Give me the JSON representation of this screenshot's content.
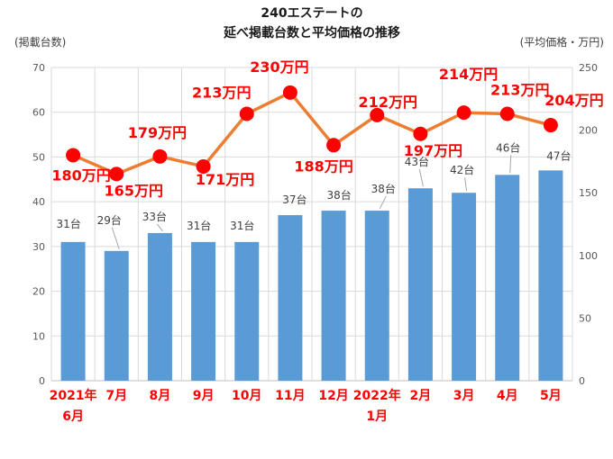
{
  "chart_data": {
    "type": "combo_bar_line",
    "title_line1": "240エステートの",
    "title_line2": "延べ掲載台数と平均価格の推移",
    "left_axis": {
      "unit_label": "(掲載台数)",
      "min": 0,
      "max": 70,
      "ticks": [
        0,
        10,
        20,
        30,
        40,
        50,
        60,
        70
      ]
    },
    "right_axis": {
      "unit_label": "(平均価格・万円)",
      "min": 0,
      "max": 250,
      "ticks": [
        0,
        50,
        100,
        150,
        200,
        250
      ]
    },
    "grid": true,
    "legend": "none",
    "categories": [
      {
        "lines": [
          "2021年",
          "6月"
        ]
      },
      {
        "lines": [
          "7月"
        ]
      },
      {
        "lines": [
          "8月"
        ]
      },
      {
        "lines": [
          "9月"
        ]
      },
      {
        "lines": [
          "10月"
        ]
      },
      {
        "lines": [
          "11月"
        ]
      },
      {
        "lines": [
          "12月"
        ]
      },
      {
        "lines": [
          "2022年",
          "1月"
        ]
      },
      {
        "lines": [
          "2月"
        ]
      },
      {
        "lines": [
          "3月"
        ]
      },
      {
        "lines": [
          "4月"
        ]
      },
      {
        "lines": [
          "5月"
        ]
      }
    ],
    "series": [
      {
        "name": "延べ掲載台数",
        "type": "bar",
        "axis": "left",
        "values": [
          31,
          29,
          33,
          31,
          31,
          37,
          38,
          38,
          43,
          42,
          46,
          47
        ],
        "labels": [
          {
            "text": "31台",
            "dx": -5,
            "dy": -20,
            "leader": false
          },
          {
            "text": "29台",
            "dx": -8,
            "dy": -34,
            "leader": true
          },
          {
            "text": "33台",
            "dx": -6,
            "dy": -18,
            "leader": true
          },
          {
            "text": "31台",
            "dx": -5,
            "dy": -18,
            "leader": false
          },
          {
            "text": "31台",
            "dx": -5,
            "dy": -18,
            "leader": false
          },
          {
            "text": "37台",
            "dx": 5,
            "dy": -17,
            "leader": false
          },
          {
            "text": "38台",
            "dx": 6,
            "dy": -17,
            "leader": false
          },
          {
            "text": "38台",
            "dx": 7,
            "dy": -24,
            "leader": true
          },
          {
            "text": "43台",
            "dx": -4,
            "dy": -29,
            "leader": true
          },
          {
            "text": "42台",
            "dx": -2,
            "dy": -25,
            "leader": true
          },
          {
            "text": "46台",
            "dx": 1,
            "dy": -30,
            "leader": true
          },
          {
            "text": "47台",
            "dx": 9,
            "dy": -16,
            "leader": false
          }
        ]
      },
      {
        "name": "平均価格",
        "type": "line",
        "axis": "right",
        "values": [
          180,
          165,
          179,
          171,
          213,
          230,
          188,
          212,
          197,
          214,
          213,
          204
        ],
        "labels": [
          {
            "text": "180万円",
            "dx": 9,
            "dy": 23
          },
          {
            "text": "165万円",
            "dx": 19,
            "dy": 19
          },
          {
            "text": "179万円",
            "dx": -3,
            "dy": -26
          },
          {
            "text": "171万円",
            "dx": 24,
            "dy": 15
          },
          {
            "text": "213万円",
            "dx": -28,
            "dy": -23
          },
          {
            "text": "230万円",
            "dx": -12,
            "dy": -28
          },
          {
            "text": "188万円",
            "dx": -11,
            "dy": 24
          },
          {
            "text": "212万円",
            "dx": 12,
            "dy": -14
          },
          {
            "text": "197万円",
            "dx": 14,
            "dy": 19
          },
          {
            "text": "214万円",
            "dx": 5,
            "dy": -42
          },
          {
            "text": "213万円",
            "dx": 14,
            "dy": -26
          },
          {
            "text": "204万円",
            "dx": 26,
            "dy": -27
          }
        ]
      }
    ],
    "colors": {
      "bar": "#5B9BD5",
      "line": "#ED7D31",
      "marker": "#FF0000",
      "red_text": "#FF0000",
      "axis_text": "#595959",
      "bar_label_text": "#404040",
      "gridline": "#D9D9D9",
      "axis_line": "#BFBFBF",
      "leader": "#A6A6A6",
      "background": "#FFFFFF"
    }
  }
}
